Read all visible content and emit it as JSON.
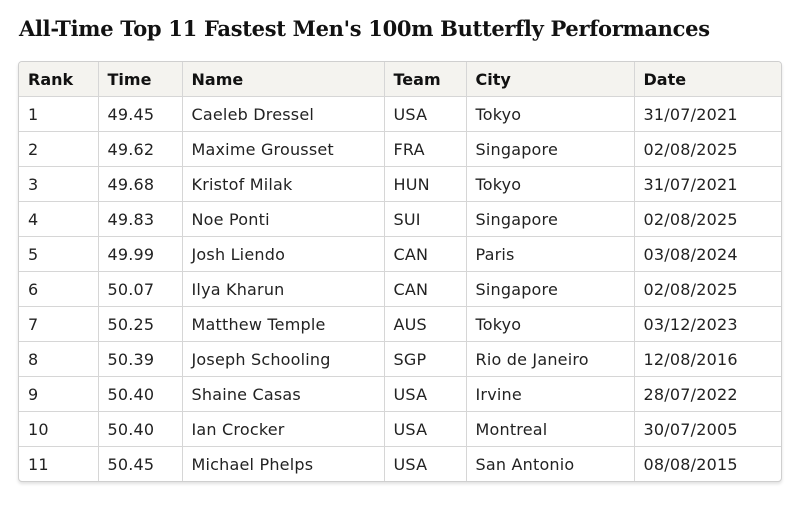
{
  "title": "All-Time Top 11 Fastest Men's 100m Butterfly Performances",
  "table": {
    "headers": [
      "Rank",
      "Time",
      "Name",
      "Team",
      "City",
      "Date"
    ],
    "rows": [
      [
        "1",
        "49.45",
        "Caeleb Dressel",
        "USA",
        "Tokyo",
        "31/07/2021"
      ],
      [
        "2",
        "49.62",
        "Maxime Grousset",
        "FRA",
        "Singapore",
        "02/08/2025"
      ],
      [
        "3",
        "49.68",
        "Kristof Milak",
        "HUN",
        "Tokyo",
        "31/07/2021"
      ],
      [
        "4",
        "49.83",
        "Noe Ponti",
        "SUI",
        "Singapore",
        "02/08/2025"
      ],
      [
        "5",
        "49.99",
        "Josh Liendo",
        "CAN",
        "Paris",
        "03/08/2024"
      ],
      [
        "6",
        "50.07",
        "Ilya Kharun",
        "CAN",
        "Singapore",
        "02/08/2025"
      ],
      [
        "7",
        "50.25",
        "Matthew Temple",
        "AUS",
        "Tokyo",
        "03/12/2023"
      ],
      [
        "8",
        "50.39",
        "Joseph Schooling",
        "SGP",
        "Rio de Janeiro",
        "12/08/2016"
      ],
      [
        "9",
        "50.40",
        "Shaine Casas",
        "USA",
        "Irvine",
        "28/07/2022"
      ],
      [
        "10",
        "50.40",
        "Ian Crocker",
        "USA",
        "Montreal",
        "30/07/2005"
      ],
      [
        "11",
        "50.45",
        "Michael Phelps",
        "USA",
        "San Antonio",
        "08/08/2015"
      ]
    ]
  }
}
